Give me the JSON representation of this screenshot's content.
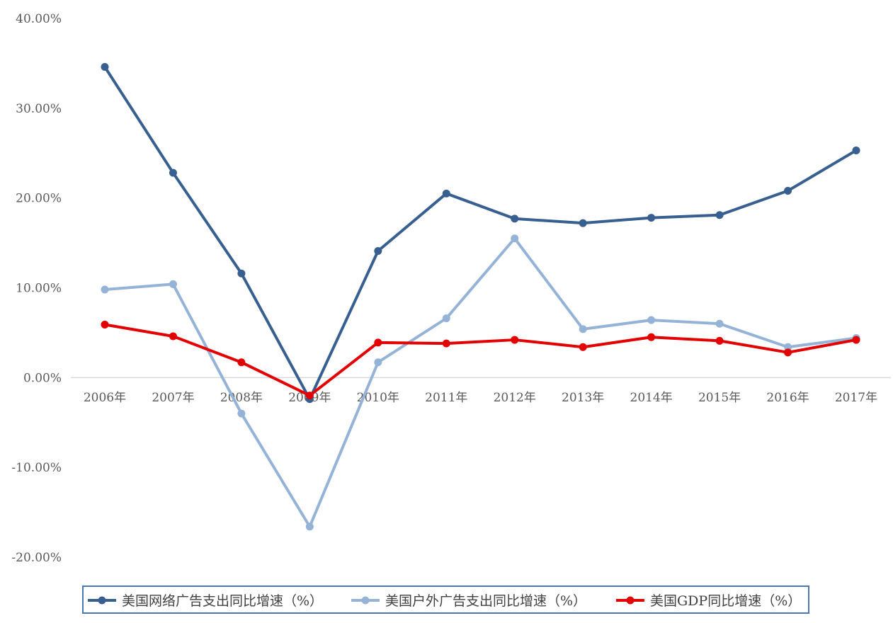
{
  "chart_data": {
    "type": "line",
    "categories": [
      "2006年",
      "2007年",
      "2008年",
      "2009年",
      "2010年",
      "2011年",
      "2012年",
      "2013年",
      "2014年",
      "2015年",
      "2016年",
      "2017年"
    ],
    "ylim": [
      -20,
      40
    ],
    "yticks": [
      40,
      30,
      20,
      10,
      0,
      -10,
      -20
    ],
    "ytick_labels": [
      "40.00%",
      "30.00%",
      "20.00%",
      "10.00%",
      "0.00%",
      "-10.00%",
      "-20.00%"
    ],
    "grid": false,
    "legend_position": "bottom",
    "series": [
      {
        "name": "美国网络广告支出同比增速（%）",
        "color": "#375f8f",
        "values": [
          34.6,
          22.8,
          11.6,
          -2.4,
          14.1,
          20.5,
          17.7,
          17.2,
          17.8,
          18.1,
          20.8,
          25.3
        ]
      },
      {
        "name": "美国户外广告支出同比增速（%）",
        "color": "#95b3d7",
        "values": [
          9.8,
          10.4,
          -4.0,
          -16.6,
          1.7,
          6.6,
          15.5,
          5.4,
          6.4,
          6.0,
          3.4,
          4.4
        ]
      },
      {
        "name": "美国GDP同比增速（%）",
        "color": "#e30000",
        "values": [
          5.9,
          4.6,
          1.7,
          -2.0,
          3.9,
          3.8,
          4.2,
          3.4,
          4.5,
          4.1,
          2.8,
          4.2
        ]
      }
    ]
  }
}
